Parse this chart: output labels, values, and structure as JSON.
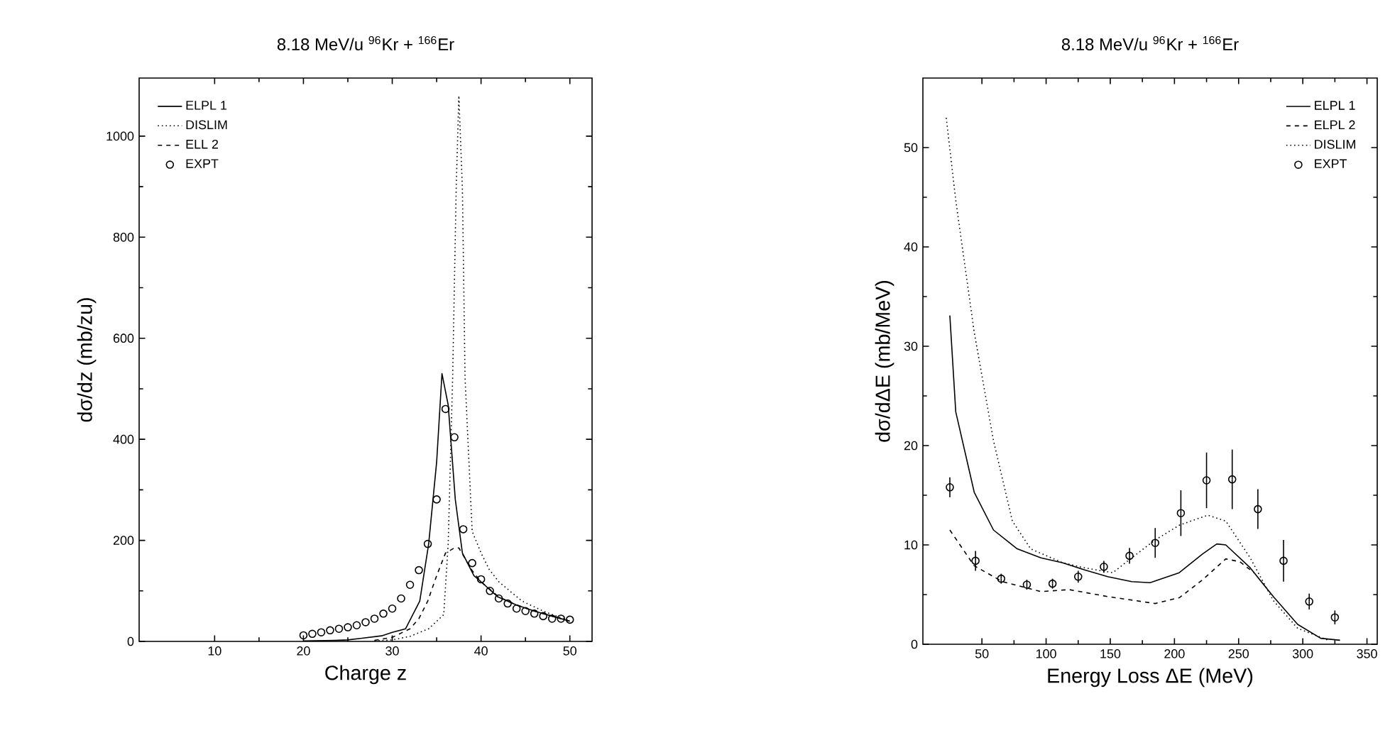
{
  "chart_data": [
    {
      "type": "line",
      "title": "8.18 MeV/u  $^{96}$Kr + $^{166}$Er",
      "xlabel": "Charge z",
      "ylabel": "dσ/dz (mb/zu)",
      "xlim": [
        1.5,
        52.5
      ],
      "ylim": [
        0,
        1115
      ],
      "xticks": [
        10,
        20,
        30,
        40,
        50
      ],
      "yticks": [
        0,
        200,
        400,
        600,
        800,
        1000
      ],
      "legend": "top left",
      "series": [
        {
          "name": "ELPL 1",
          "color": "#000000",
          "line_style": "solid",
          "x": [
            20,
            23.5,
            25,
            28.8,
            30,
            31.5,
            33.1,
            34.1,
            35,
            35.6,
            36.3,
            37.1,
            37.9,
            39.2,
            40,
            41.9,
            44,
            46,
            48,
            50
          ],
          "values": [
            1,
            2,
            3,
            11,
            18,
            25,
            80,
            193,
            355,
            530,
            468,
            281,
            175,
            130,
            118,
            88,
            72,
            60,
            50,
            40
          ]
        },
        {
          "name": "DISLIM",
          "color": "#000000",
          "line_style": "dotted",
          "x": [
            28,
            30,
            32,
            34.1,
            35.8,
            36.3,
            36.8,
            37.2,
            37.5,
            37.9,
            38.2,
            39,
            40,
            40.9,
            42,
            44.6,
            47,
            50
          ],
          "values": [
            1,
            3,
            10,
            25,
            53,
            193,
            521,
            896,
            1080,
            896,
            521,
            218,
            175,
            143,
            118,
            80,
            60,
            40
          ]
        },
        {
          "name": "ELL 2",
          "color": "#000000",
          "line_style": "dashed",
          "x": [
            28,
            30,
            32,
            33,
            34,
            35,
            36,
            37,
            37.5,
            38,
            39,
            40,
            42,
            44,
            46,
            48,
            50
          ],
          "values": [
            2,
            8,
            25,
            45,
            80,
            130,
            175,
            185,
            185,
            170,
            140,
            118,
            88,
            72,
            60,
            50,
            40
          ]
        },
        {
          "name": "EXPT",
          "type": "scatter",
          "marker": "circle",
          "color": "#000000",
          "x": [
            20,
            21,
            22,
            23,
            24,
            25,
            26,
            27,
            28,
            29,
            30,
            31,
            32,
            33,
            34,
            35,
            36,
            37,
            38,
            39,
            40,
            41,
            42,
            43,
            44,
            45,
            46,
            47,
            48,
            49,
            50
          ],
          "values": [
            12,
            15,
            18,
            22,
            25,
            28,
            32,
            38,
            45,
            55,
            65,
            85,
            112,
            141,
            193,
            281,
            460,
            404,
            222,
            155,
            123,
            100,
            85,
            75,
            65,
            60,
            55,
            50,
            45,
            45,
            43
          ]
        }
      ]
    },
    {
      "type": "line",
      "title": "8.18 MeV/u  $^{96}$Kr + $^{166}$Er",
      "xlabel": "Energy Loss  ΔE (MeV)",
      "ylabel": "dσ/dΔE (mb/MeV)",
      "xlim": [
        4,
        358
      ],
      "ylim": [
        0,
        57
      ],
      "xticks": [
        50,
        100,
        150,
        200,
        250,
        300,
        350
      ],
      "yticks": [
        0,
        10,
        20,
        30,
        40,
        50
      ],
      "legend": "top right",
      "series": [
        {
          "name": "ELPL 1",
          "color": "#000000",
          "line_style": "solid",
          "x": [
            25,
            29.6,
            44,
            59,
            77.5,
            96,
            113,
            129.6,
            148,
            166.7,
            181,
            203.7,
            222,
            233,
            240,
            259,
            277,
            296,
            314,
            329
          ],
          "values": [
            33.1,
            23.4,
            15.3,
            11.5,
            9.6,
            8.7,
            8.2,
            7.5,
            6.8,
            6.3,
            6.2,
            7.2,
            9.1,
            10.1,
            10,
            7.7,
            4.8,
            2,
            0.6,
            0.4
          ]
        },
        {
          "name": "ELPL 2",
          "color": "#000000",
          "line_style": "dashed",
          "x": [
            25,
            44,
            66,
            96,
            118,
            148,
            185,
            204,
            222,
            240,
            251,
            262
          ],
          "values": [
            11.5,
            7.9,
            6.3,
            5.3,
            5.5,
            4.8,
            4.1,
            4.7,
            6.5,
            8.6,
            8.3,
            7.2
          ]
        },
        {
          "name": "DISLIM",
          "color": "#000000",
          "line_style": "dotted",
          "x": [
            22.2,
            29.6,
            44,
            59,
            73.7,
            88,
            113,
            129.6,
            152,
            166.7,
            185,
            204,
            226,
            240,
            259,
            277,
            296,
            320
          ],
          "values": [
            53,
            44.7,
            31.4,
            20.5,
            12.4,
            9.6,
            8.2,
            7.7,
            7.2,
            8.7,
            10.5,
            12,
            13,
            12.4,
            8.7,
            4.4,
            1.6,
            0.4
          ]
        },
        {
          "name": "EXPT",
          "type": "scatter",
          "marker": "circle",
          "color": "#000000",
          "x": [
            25,
            45,
            65,
            85,
            105,
            125,
            145,
            165,
            185,
            205,
            225,
            245,
            265,
            285,
            305,
            325
          ],
          "values": [
            15.8,
            8.4,
            6.6,
            6,
            6.1,
            6.8,
            7.8,
            8.9,
            10.2,
            13.2,
            16.5,
            16.6,
            13.6,
            8.4,
            4.3,
            2.7
          ],
          "errors": [
            1,
            1,
            0.5,
            0.5,
            0.5,
            0.6,
            0.6,
            0.8,
            1.5,
            2.3,
            2.8,
            3,
            2,
            2.1,
            0.8,
            0.7
          ]
        }
      ]
    }
  ]
}
